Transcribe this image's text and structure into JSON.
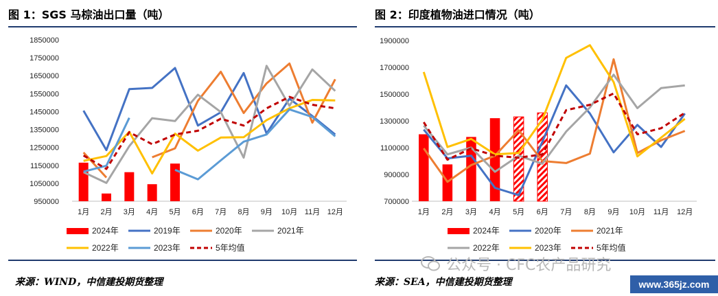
{
  "colors": {
    "red": "#ff0000",
    "darkred": "#c00000",
    "blue": "#4472c4",
    "orange": "#ed7d31",
    "gray": "#a5a5a5",
    "yellow": "#ffc000",
    "lightblue": "#5b9bd5",
    "rule": "#1f3a6e"
  },
  "left": {
    "title": "图 1：SGS 马棕油出口量（吨）",
    "source": "来源：WIND，中信建投期货整理"
  },
  "right": {
    "title": "图 2：印度植物油进口情况（吨）",
    "source": "来源：SEA，中信建投期货整理"
  },
  "watermark": "公众号 · CFC农产品研究",
  "watermark_icon": "wechat-icon",
  "site": "www.365jz.com",
  "chart_data": [
    {
      "type": "bar+line",
      "title": "图 1：SGS 马棕油出口量（吨）",
      "categories": [
        "1月",
        "2月",
        "3月",
        "4月",
        "5月",
        "6月",
        "7月",
        "8月",
        "9月",
        "10月",
        "11月",
        "12月"
      ],
      "ylim": [
        950000,
        1850000
      ],
      "yticks": [
        "950000",
        "1050000",
        "1150000",
        "1250000",
        "1350000",
        "1450000",
        "1550000",
        "1650000",
        "1750000",
        "1850000"
      ],
      "bars": {
        "name": "2024年",
        "values": [
          1165000,
          993000,
          1112000,
          1045000,
          1160000
        ]
      },
      "series": [
        {
          "name": "2019年",
          "values": [
            1455000,
            1235000,
            1575000,
            1582000,
            1693000,
            1372000,
            1446000,
            1665000,
            1328000,
            1522000,
            1425000,
            1322000
          ]
        },
        {
          "name": "2020年",
          "values": [
            1222000,
            1082000,
            null,
            1195000,
            1245000,
            1510000,
            1672000,
            1442000,
            1607000,
            1718000,
            1388000,
            1630000
          ]
        },
        {
          "name": "2021年",
          "values": [
            1112000,
            1052000,
            1257000,
            1413000,
            1397000,
            1544000,
            1447000,
            1193000,
            1705000,
            1482000,
            1685000,
            1565000
          ]
        },
        {
          "name": "2022年",
          "values": [
            1175000,
            1202000,
            1337000,
            1105000,
            1327000,
            1232000,
            1305000,
            1307000,
            1402000,
            1468000,
            1515000,
            1512000
          ]
        },
        {
          "name": "2023年",
          "values": [
            1115000,
            1148000,
            1415000,
            null,
            1125000,
            1072000,
            1178000,
            1282000,
            1322000,
            1462000,
            1420000,
            1312000
          ]
        },
        {
          "name": "5年均值",
          "values": [
            1205000,
            1130000,
            1335000,
            1268000,
            1322000,
            1343000,
            1410000,
            1372000,
            1468000,
            1532000,
            1488000,
            1468000
          ]
        }
      ]
    },
    {
      "type": "bar+line",
      "title": "图 2：印度植物油进口情况（吨）",
      "categories": [
        "1月",
        "2月",
        "3月",
        "4月",
        "5月",
        "6月",
        "7月",
        "8月",
        "9月",
        "10月",
        "11月",
        "12月"
      ],
      "ylim": [
        700000,
        1900000
      ],
      "yticks": [
        "700000",
        "900000",
        "1100000",
        "1300000",
        "1500000",
        "1700000",
        "1900000"
      ],
      "bars": {
        "name": "2024年",
        "values": [
          1200000,
          975000,
          1180000,
          1320000,
          1330000,
          1360000
        ],
        "hatched_from_index": 4
      },
      "series": [
        {
          "name": "2020年",
          "values": [
            1235000,
            1020000,
            1040000,
            800000,
            745000,
            1145000,
            1565000,
            1355000,
            1065000,
            1270000,
            1105000,
            1355000
          ]
        },
        {
          "name": "2021年",
          "values": [
            1095000,
            845000,
            970000,
            1040000,
            1230000,
            1000000,
            985000,
            1055000,
            1760000,
            1060000,
            1155000,
            1225000
          ]
        },
        {
          "name": "2022年",
          "values": [
            1265000,
            1050000,
            1100000,
            920000,
            1040000,
            980000,
            1220000,
            1400000,
            1645000,
            1395000,
            1545000,
            1565000
          ]
        },
        {
          "name": "2023年",
          "values": [
            1665000,
            1105000,
            1165000,
            1050000,
            1060000,
            1310000,
            1770000,
            1865000,
            1590000,
            1035000,
            1175000,
            1315000
          ]
        },
        {
          "name": "5年均值",
          "values": [
            1290000,
            1010000,
            1095000,
            1040000,
            1025000,
            1050000,
            1380000,
            1420000,
            1505000,
            1200000,
            1245000,
            1360000
          ]
        }
      ]
    }
  ]
}
